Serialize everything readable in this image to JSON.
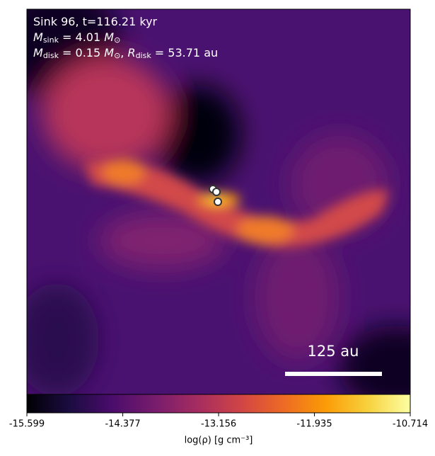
{
  "chart_data": {
    "type": "image",
    "info_lines": [
      [
        {
          "text": "Sink 96, t=116.21 kyr"
        }
      ],
      [
        {
          "text": "M"
        },
        {
          "text": "sink",
          "sub": true
        },
        {
          "text": " = 4.01 "
        },
        {
          "text": "M"
        },
        {
          "text": "⊙",
          "sub": true
        }
      ],
      [
        {
          "text": "M"
        },
        {
          "text": "disk",
          "sub": true
        },
        {
          "text": " = 0.15 "
        },
        {
          "text": "M"
        },
        {
          "text": "⊙",
          "sub": true
        },
        {
          "text": ", "
        },
        {
          "text": "R"
        },
        {
          "text": "disk",
          "sub": true
        },
        {
          "text": " = 53.71 au"
        }
      ]
    ],
    "scale_bar_label": "125 au",
    "colorbar": {
      "label": "log(ρ) [g cm⁻³]",
      "clim": [
        -15.599,
        -10.714
      ],
      "ticks": [
        -15.599,
        -14.377,
        -13.156,
        -11.935,
        -10.714
      ],
      "colormap": [
        "#000004",
        "#1b0c41",
        "#4a0c6b",
        "#781c6d",
        "#a52c60",
        "#cf4446",
        "#ed6925",
        "#fb9b06",
        "#f7d13d",
        "#fcffa4"
      ]
    }
  }
}
